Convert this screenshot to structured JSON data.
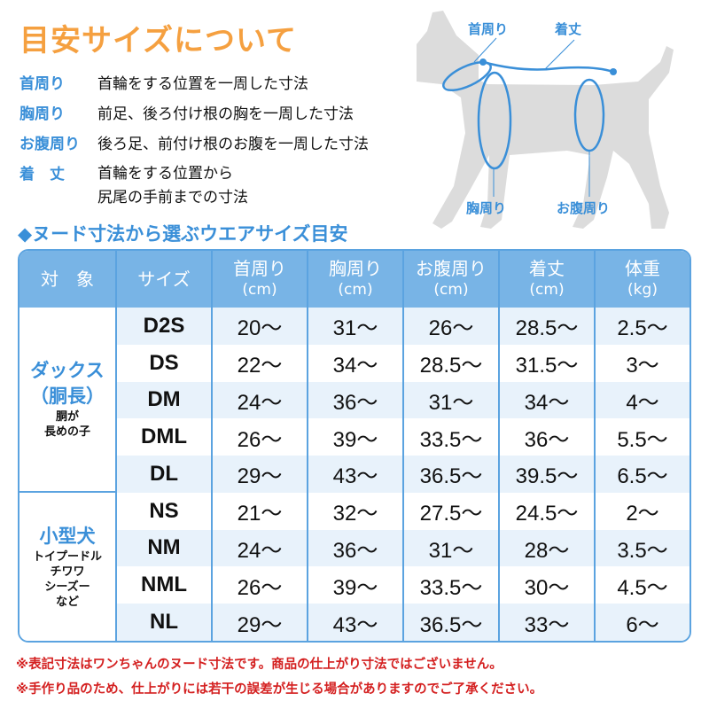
{
  "title": "目安サイズについて",
  "definitions": [
    {
      "term": "首周り",
      "desc": "首輪をする位置を一周した寸法"
    },
    {
      "term": "胸周り",
      "desc": "前足、後ろ付け根の胸を一周した寸法"
    },
    {
      "term": "お腹周り",
      "desc": "後ろ足、前付け根のお腹を一周した寸法"
    },
    {
      "term": "着　丈",
      "desc": "首輪をする位置から",
      "desc2": "尻尾の手前までの寸法"
    }
  ],
  "diagram": {
    "neck": "首周り",
    "length": "着丈",
    "chest": "胸周り",
    "belly": "お腹周り",
    "accent": "#3a8fd8",
    "silhouette": "#dcdcdc"
  },
  "subtitle": "◆ヌード寸法から選ぶウエアサイズ目安",
  "table": {
    "headers": [
      {
        "l": "対　象",
        "u": ""
      },
      {
        "l": "サイズ",
        "u": ""
      },
      {
        "l": "首周り",
        "u": "(cm)"
      },
      {
        "l": "胸周り",
        "u": "(cm)"
      },
      {
        "l": "お腹周り",
        "u": "(cm)"
      },
      {
        "l": "着丈",
        "u": "(cm)"
      },
      {
        "l": "体重",
        "u": "(kg)"
      }
    ],
    "groups": [
      {
        "name": "ダックス",
        "name2": "（胴長）",
        "note": "胴が",
        "note2": "長めの子",
        "rows": [
          [
            "D2S",
            "20～",
            "31～",
            "26～",
            "28.5～",
            "2.5～"
          ],
          [
            "DS",
            "22～",
            "34～",
            "28.5～",
            "31.5～",
            "3～"
          ],
          [
            "DM",
            "24～",
            "36～",
            "31～",
            "34～",
            "4～"
          ],
          [
            "DML",
            "26～",
            "39～",
            "33.5～",
            "36～",
            "5.5～"
          ],
          [
            "DL",
            "29～",
            "43～",
            "36.5～",
            "39.5～",
            "6.5～"
          ]
        ]
      },
      {
        "name": "小型犬",
        "note": "トイプードル",
        "note2": "チワワ",
        "note3": "シーズー",
        "note4": "など",
        "rows": [
          [
            "NS",
            "21～",
            "32～",
            "27.5～",
            "24.5～",
            "2～"
          ],
          [
            "NM",
            "24～",
            "36～",
            "31～",
            "28～",
            "3.5～"
          ],
          [
            "NML",
            "26～",
            "39～",
            "33.5～",
            "30～",
            "4.5～"
          ],
          [
            "NL",
            "29～",
            "43～",
            "36.5～",
            "33～",
            "6～"
          ]
        ]
      }
    ]
  },
  "notes": [
    "※表記寸法はワンちゃんのヌード寸法です。商品の仕上がり寸法ではございません。",
    "※手作り品のため、仕上がりには若干の誤差が生じる場合がありますのでご了承ください。"
  ]
}
